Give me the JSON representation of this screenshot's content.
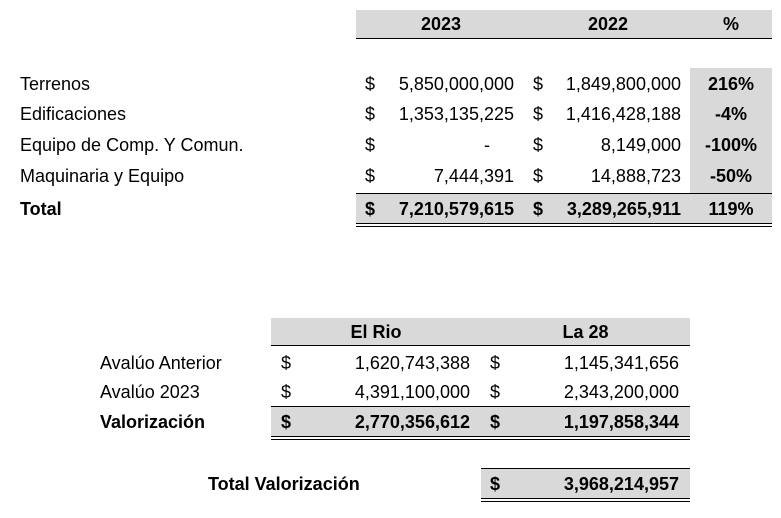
{
  "table1": {
    "headers": [
      "2023",
      "2022",
      "%"
    ],
    "rows": [
      {
        "label": "Terrenos",
        "cur1": "$",
        "val2023": "5,850,000,000",
        "cur2": "$",
        "val2022": "1,849,800,000",
        "pct": "216%"
      },
      {
        "label": "Edificaciones",
        "cur1": "$",
        "val2023": "1,353,135,225",
        "cur2": "$",
        "val2022": "1,416,428,188",
        "pct": "-4%"
      },
      {
        "label": "Equipo de Comp. Y Comun.",
        "cur1": "$",
        "val2023": "-",
        "cur2": "$",
        "val2022": "8,149,000",
        "pct": "-100%"
      },
      {
        "label": "Maquinaria y Equipo",
        "cur1": "$",
        "val2023": "7,444,391",
        "cur2": "$",
        "val2022": "14,888,723",
        "pct": "-50%"
      }
    ],
    "total": {
      "label": "Total",
      "cur1": "$",
      "val2023": "7,210,579,615",
      "cur2": "$",
      "val2022": "3,289,265,911",
      "pct": "119%"
    }
  },
  "table2": {
    "headers": [
      "El Rio",
      "La 28"
    ],
    "rows": [
      {
        "label": "Avalúo Anterior",
        "cur1": "$",
        "v1": "1,620,743,388",
        "cur2": "$",
        "v2": "1,145,341,656"
      },
      {
        "label": "Avalúo 2023",
        "cur1": "$",
        "v1": "4,391,100,000",
        "cur2": "$",
        "v2": "2,343,200,000"
      }
    ],
    "total": {
      "label": "Valorización",
      "cur1": "$",
      "v1": "2,770,356,612",
      "cur2": "$",
      "v2": "1,197,858,344"
    }
  },
  "grand_total": {
    "label": "Total Valorización",
    "cur": "$",
    "value": "3,968,214,957"
  },
  "colors": {
    "header_fill": "#d9d9d9",
    "border": "#000000"
  }
}
